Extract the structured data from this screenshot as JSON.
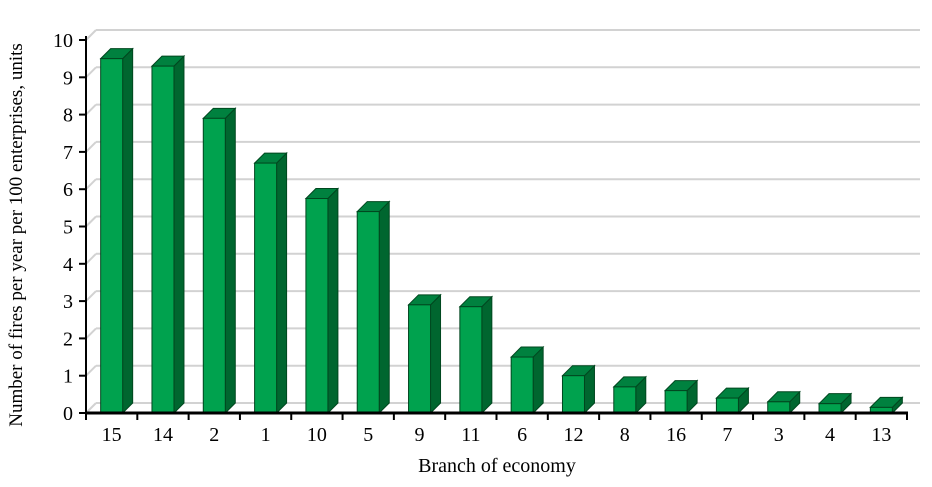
{
  "chart_data": {
    "type": "bar",
    "title": "",
    "xlabel": "Branch of economy",
    "ylabel": "Number of fires per year per 100 enterprises, units",
    "categories": [
      "15",
      "14",
      "2",
      "1",
      "10",
      "5",
      "9",
      "11",
      "6",
      "12",
      "8",
      "16",
      "7",
      "3",
      "4",
      "13"
    ],
    "values": [
      9.5,
      9.3,
      7.9,
      6.7,
      5.75,
      5.4,
      2.9,
      2.85,
      1.5,
      1.0,
      0.7,
      0.6,
      0.4,
      0.3,
      0.25,
      0.15
    ],
    "ylim": [
      0,
      10
    ],
    "yticks": [
      0,
      1,
      2,
      3,
      4,
      5,
      6,
      7,
      8,
      9,
      10
    ],
    "grid": true,
    "legend": "none",
    "bar_style": "3d-column",
    "colors": {
      "bar_front": "#00A24E",
      "bar_top": "#00813F",
      "bar_side": "#00662F",
      "bar_outline": "#00471F",
      "gridline": "#D2D2D2",
      "axis": "#000000",
      "text": "#000000",
      "background": "#FFFFFF"
    }
  }
}
